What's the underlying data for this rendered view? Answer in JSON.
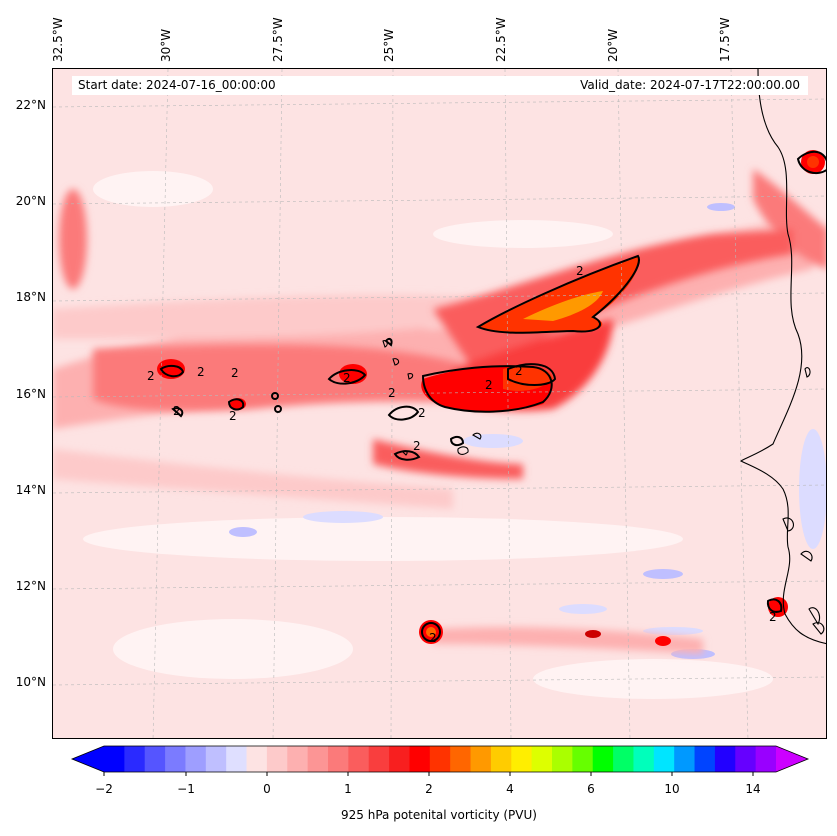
{
  "info": {
    "start_date": "Start date: 2024-07-16_00:00:00",
    "valid_date": "Valid_date: 2024-07-17T22:00:00.00"
  },
  "axes": {
    "lon_labels": [
      "32.5°W",
      "30°W",
      "27.5°W",
      "25°W",
      "22.5°W",
      "20°W",
      "17.5°W"
    ],
    "lat_labels": [
      "22°N",
      "20°N",
      "18°N",
      "16°N",
      "14°N",
      "12°N",
      "10°N"
    ]
  },
  "contour_labels": [
    "2",
    "2",
    "2",
    "2",
    "2",
    "2",
    "2",
    "2",
    "2",
    "2",
    "2",
    "2",
    "2",
    "2"
  ],
  "colorbar": {
    "label": "925 hPa potenital vorticity (PVU)",
    "ticks": [
      "−2",
      "−1",
      "0",
      "1",
      "2",
      "4",
      "6",
      "10",
      "14"
    ],
    "colors": [
      "#0000ff",
      "#2a2aff",
      "#5555ff",
      "#7b7bff",
      "#9e9eff",
      "#bfbfff",
      "#dfdfff",
      "#fde3e3",
      "#fdcaca",
      "#fdb0b0",
      "#fc9595",
      "#fb7a7a",
      "#fa5d5d",
      "#f93e3e",
      "#f81f1f",
      "#ff0000",
      "#ff3300",
      "#ff6600",
      "#ff9900",
      "#ffcc00",
      "#ffee00",
      "#ddff00",
      "#aaff00",
      "#66ff00",
      "#00ff00",
      "#00ff66",
      "#00ffbb",
      "#00e5ff",
      "#0099ff",
      "#0044ff",
      "#2200ff",
      "#6600ff",
      "#9900ff"
    ],
    "under_color": "#0000ff",
    "over_color": "#cc00ff"
  }
}
